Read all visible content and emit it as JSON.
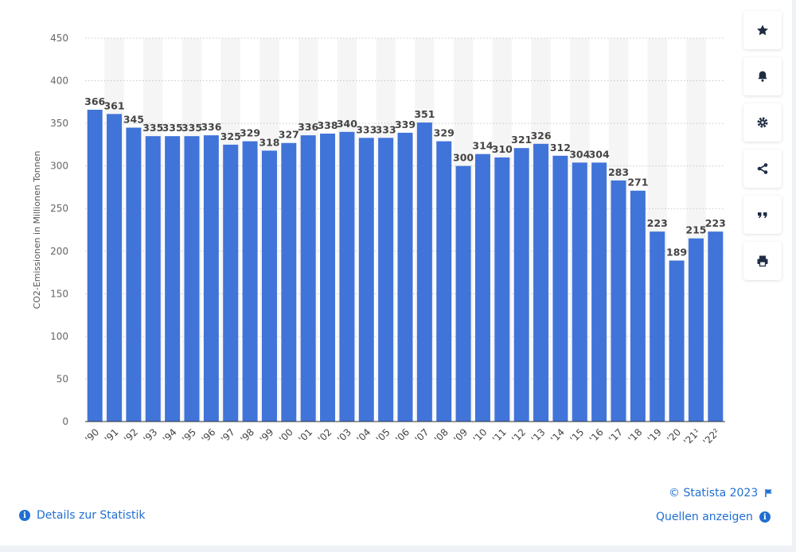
{
  "chart_data": {
    "type": "bar",
    "categories": [
      "'90",
      "'91",
      "'92",
      "'93",
      "'94",
      "'95",
      "'96",
      "'97",
      "'98",
      "'99",
      "'00",
      "'01",
      "'02",
      "'03",
      "'04",
      "'05",
      "'06",
      "'07",
      "'08",
      "'09",
      "'10",
      "'11",
      "'12",
      "'13",
      "'14",
      "'15",
      "'16",
      "'17",
      "'18",
      "'19",
      "'20",
      "'21¹",
      "'22²"
    ],
    "values": [
      366,
      361,
      345,
      335,
      335,
      335,
      336,
      325,
      329,
      318,
      327,
      336,
      338,
      340,
      333,
      333,
      339,
      351,
      329,
      300,
      314,
      310,
      321,
      326,
      312,
      304,
      304,
      283,
      271,
      223,
      189,
      215,
      223
    ],
    "ylabel": "CO2-Emissionen in Millionen Tonnen",
    "ylim": [
      0,
      450
    ],
    "yticks": [
      0,
      50,
      100,
      150,
      200,
      250,
      300,
      350,
      400,
      450
    ],
    "grid": true,
    "bar_color": "#4174d9"
  },
  "toolbar": {
    "buttons": [
      {
        "name": "favorite-button",
        "icon": "star-icon"
      },
      {
        "name": "notification-button",
        "icon": "bell-icon"
      },
      {
        "name": "settings-button",
        "icon": "gear-icon"
      },
      {
        "name": "share-button",
        "icon": "share-icon"
      },
      {
        "name": "cite-button",
        "icon": "quote-icon"
      },
      {
        "name": "print-button",
        "icon": "printer-icon"
      }
    ]
  },
  "footer": {
    "credit": "© Statista 2023",
    "details_link": "Details zur Statistik",
    "sources_link": "Quellen anzeigen",
    "info_glyph": "i"
  },
  "colors": {
    "accent": "#1f6fd1",
    "bar": "#4174d9",
    "band": "#f5f5f5"
  }
}
